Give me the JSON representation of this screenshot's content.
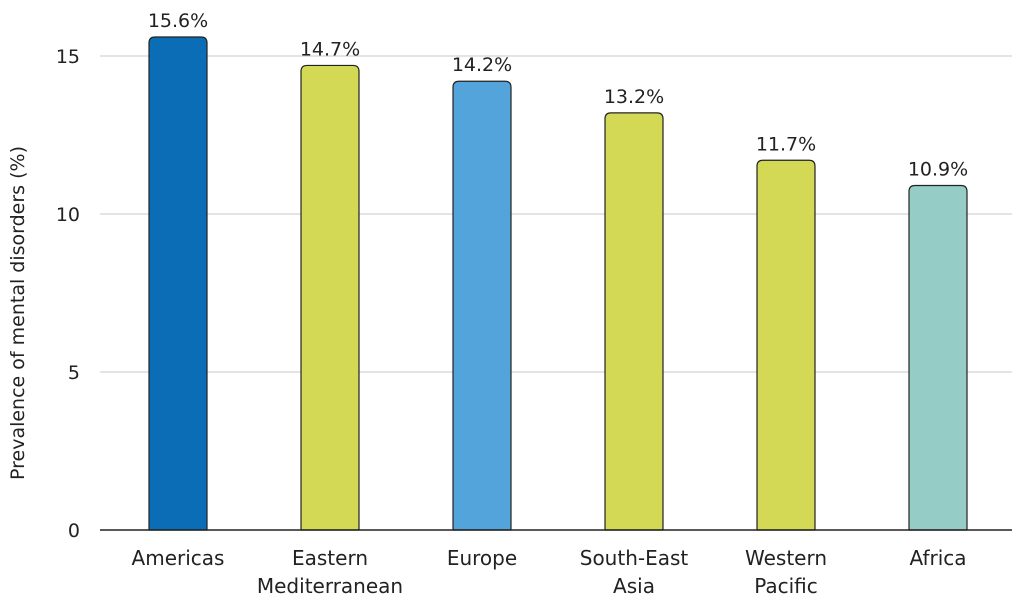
{
  "chart_data": {
    "type": "bar",
    "title": "",
    "xlabel": "",
    "ylabel": "Prevalence of mental disorders (%)",
    "ylim": [
      0,
      15.6
    ],
    "yticks": [
      0,
      5,
      10,
      15
    ],
    "grid": true,
    "legend": "none",
    "categories": [
      [
        "Americas"
      ],
      [
        "Eastern",
        "Mediterranean"
      ],
      [
        "Europe"
      ],
      [
        "South-East",
        "Asia"
      ],
      [
        "Western",
        "Pacific"
      ],
      [
        "Africa"
      ]
    ],
    "values": [
      15.6,
      14.7,
      14.2,
      13.2,
      11.7,
      10.9
    ],
    "data_labels": [
      "15.6%",
      "14.7%",
      "14.2%",
      "13.2%",
      "11.7%",
      "10.9%"
    ],
    "colors": [
      "#0a6db5",
      "#d4d955",
      "#54a4dc",
      "#d4d955",
      "#d4d955",
      "#96ccc6"
    ]
  }
}
